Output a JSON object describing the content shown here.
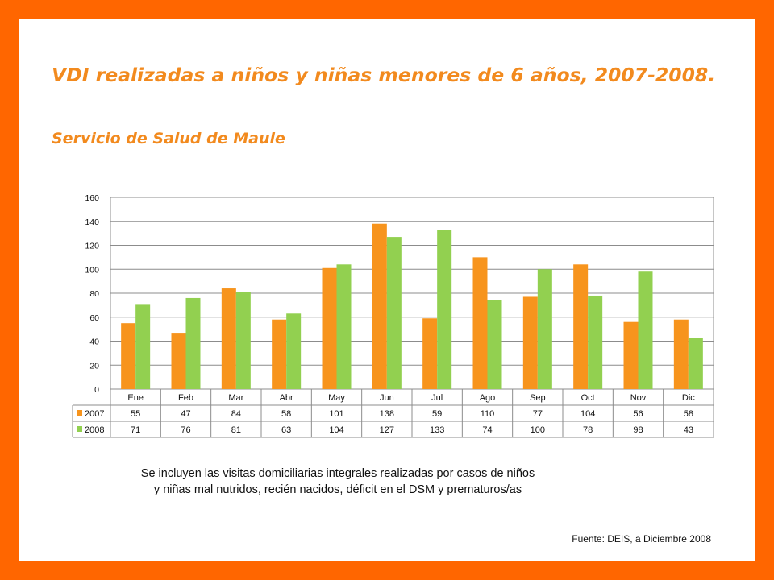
{
  "slide": {
    "title": "VDI realizadas a niños y niñas menores de 6 años, 2007-2008.",
    "subtitle": "Servicio de Salud de Maule",
    "note": "Se incluyen las visitas domiciliarias integrales realizadas por casos de niños y niñas mal nutridos, recién nacidos, déficit en el DSM y prematuros/as",
    "source": "Fuente: DEIS, a Diciembre 2008"
  },
  "chart_data": {
    "type": "bar",
    "categories": [
      "Ene",
      "Feb",
      "Mar",
      "Abr",
      "May",
      "Jun",
      "Jul",
      "Ago",
      "Sep",
      "Oct",
      "Nov",
      "Dic"
    ],
    "series": [
      {
        "name": "2007",
        "color": "#F7941D",
        "values": [
          55,
          47,
          84,
          58,
          101,
          138,
          59,
          110,
          77,
          104,
          56,
          58
        ]
      },
      {
        "name": "2008",
        "color": "#92D050",
        "values": [
          71,
          76,
          81,
          63,
          104,
          127,
          133,
          74,
          100,
          78,
          98,
          43
        ]
      }
    ],
    "ylim": [
      0,
      160
    ],
    "yticks": [
      0,
      20,
      40,
      60,
      80,
      100,
      120,
      140,
      160
    ],
    "grid": true,
    "legend": "data-table"
  }
}
